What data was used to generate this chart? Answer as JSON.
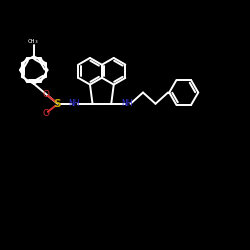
{
  "bg_color": "#000000",
  "bond_color": "#ffffff",
  "o_color": "#dd3333",
  "s_color": "#ccaa00",
  "n_color": "#3333dd",
  "lw": 1.4,
  "ring_r": 0.058,
  "figsize": 2.5,
  "dpi": 100,
  "xlim": [
    0,
    1
  ],
  "ylim": [
    0,
    1
  ]
}
